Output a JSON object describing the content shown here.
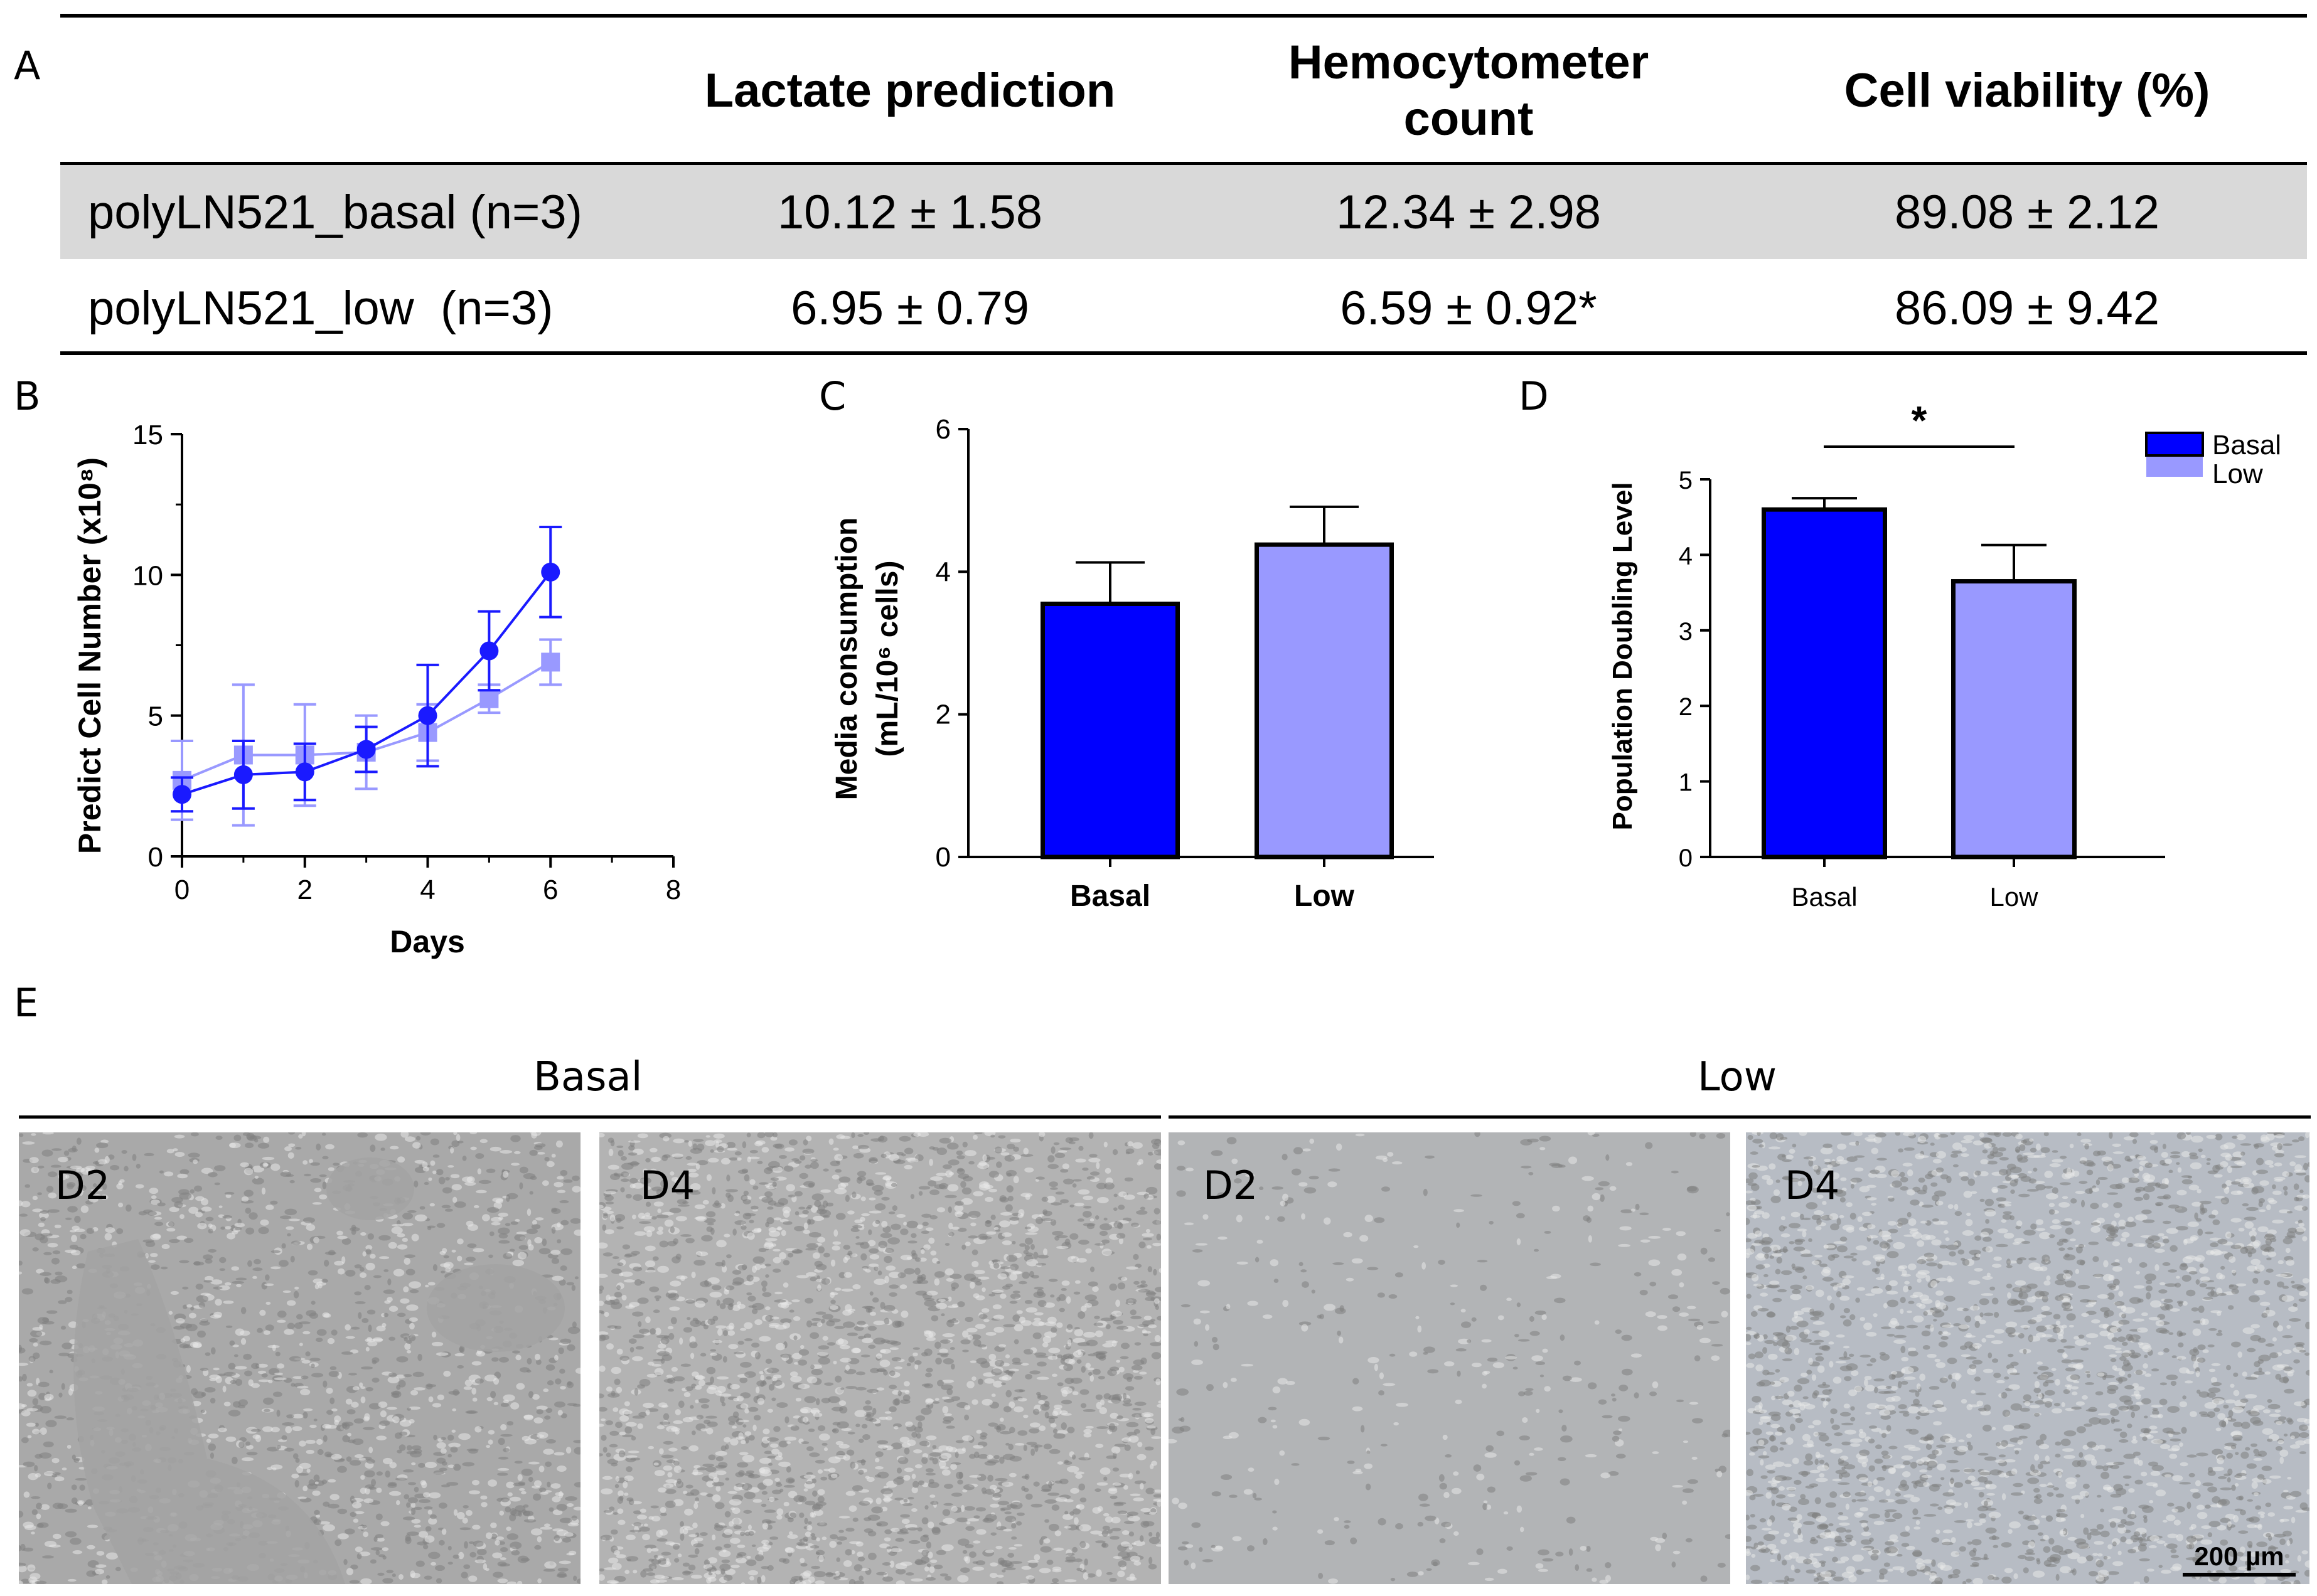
{
  "panel_labels": {
    "a": "A",
    "b": "B",
    "c": "C",
    "d": "D",
    "e": "E"
  },
  "table": {
    "headers": [
      "Lactate prediction",
      "Hemocytometer count",
      "Cell viability (%)"
    ],
    "rows": [
      {
        "label": "polyLN521_basal (n=3)",
        "lactate": "10.12 ± 1.58",
        "hemocytometer": "12.34 ± 2.98",
        "viability": "89.08 ± 2.12"
      },
      {
        "label": "polyLN521_low  (n=3)",
        "lactate": "6.95 ± 0.79",
        "hemocytometer": "6.59 ± 0.92*",
        "viability": "86.09 ± 9.42"
      }
    ]
  },
  "chart_data": [
    {
      "panel": "B",
      "type": "line",
      "xlabel": "Days",
      "ylabel": "Predict Cell Number (x10⁸)",
      "xlim": [
        0,
        8
      ],
      "ylim": [
        0,
        15
      ],
      "xticks": [
        "0",
        "2",
        "4",
        "6",
        "8"
      ],
      "yticks": [
        "0",
        "5",
        "10",
        "15"
      ],
      "grid": false,
      "series": [
        {
          "color": "#1a1aff",
          "marker": "circle",
          "x": [
            0,
            1,
            2,
            3,
            4,
            5,
            6
          ],
          "y": [
            2.2,
            2.9,
            3.0,
            3.8,
            5.0,
            7.3,
            10.1
          ],
          "err": [
            0.6,
            1.2,
            1.0,
            0.8,
            1.8,
            1.4,
            1.6
          ]
        },
        {
          "color": "#9999ff",
          "marker": "square",
          "x": [
            0,
            1,
            2,
            3,
            4,
            5,
            6
          ],
          "y": [
            2.7,
            3.6,
            3.6,
            3.7,
            4.4,
            5.6,
            6.9
          ],
          "err": [
            1.4,
            2.5,
            1.8,
            1.3,
            1.0,
            0.5,
            0.8
          ]
        }
      ]
    },
    {
      "panel": "C",
      "type": "bar",
      "categories": [
        "Basal",
        "Low"
      ],
      "values": [
        3.55,
        4.38
      ],
      "errors": [
        0.58,
        0.53
      ],
      "colors": [
        "#0000ff",
        "#9999ff"
      ],
      "ylabel_line1": "Media consumption",
      "ylabel_line2": "(mL/10⁶ cells)",
      "ylim": [
        0,
        6
      ],
      "yticks": [
        "0",
        "2",
        "4",
        "6"
      ]
    },
    {
      "panel": "D",
      "type": "bar",
      "categories": [
        "Basal",
        "Low"
      ],
      "values": [
        4.6,
        3.65
      ],
      "errors": [
        0.15,
        0.48
      ],
      "colors": [
        "#0000ff",
        "#9999ff"
      ],
      "ylabel": "Population Doubling Level",
      "ylim": [
        0,
        5
      ],
      "yticks": [
        "0",
        "1",
        "2",
        "3",
        "4",
        "5"
      ],
      "significance": "*",
      "legend": [
        {
          "name": "Basal",
          "color": "#0000ff"
        },
        {
          "name": "Low",
          "color": "#9999ff"
        }
      ],
      "legend_position": "top-right"
    }
  ],
  "micrographs": {
    "conditions": [
      "Basal",
      "Low"
    ],
    "images": [
      {
        "condition": "Basal",
        "label": "D2",
        "tone": "#a9a9a9"
      },
      {
        "condition": "Basal",
        "label": "D4",
        "tone": "#b3b3b3"
      },
      {
        "condition": "Low",
        "label": "D2",
        "tone": "#b2b4b6"
      },
      {
        "condition": "Low",
        "label": "D4",
        "tone": "#b7bcc4"
      }
    ],
    "scale_bar": "200 µm"
  }
}
